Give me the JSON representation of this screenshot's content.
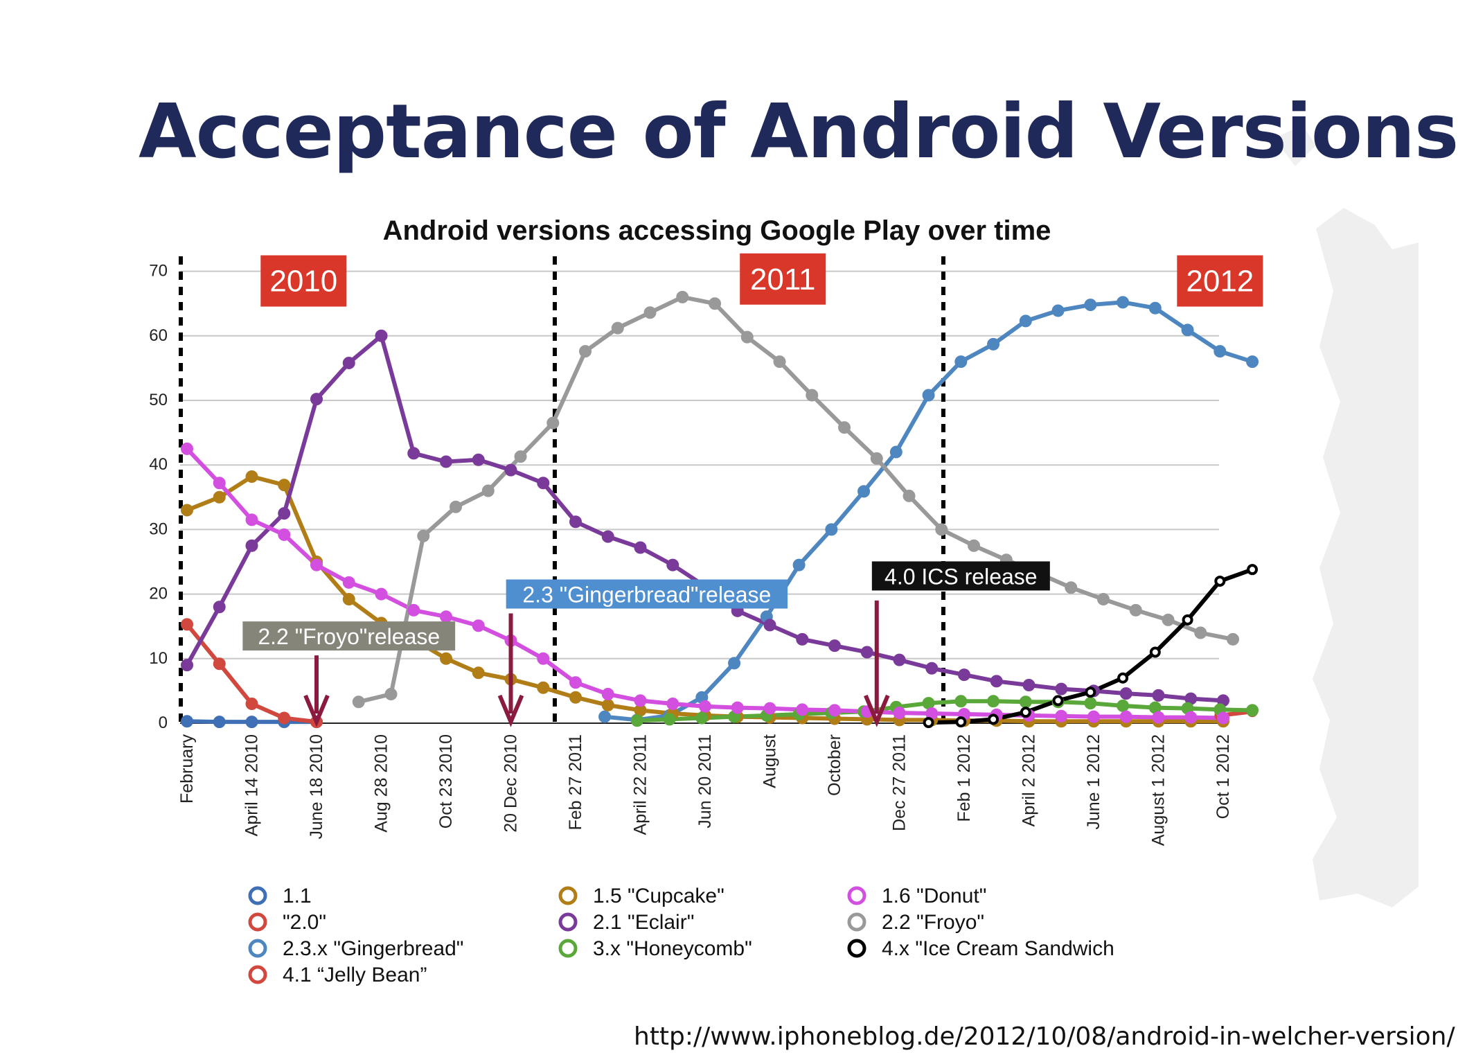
{
  "slide": {
    "title": "Acceptance of Android Versions",
    "source": "http://www.iphoneblog.de/2012/10/08/android-in-welcher-version/"
  },
  "colors": {
    "title": "#1f2a5a",
    "year_box": "#d9372a",
    "froyo_box": "#85857a",
    "gingerbread_box": "#4f8fd0",
    "ics_box": "#111111",
    "arrow": "#8b1a3f"
  },
  "chart_data": {
    "type": "line",
    "title": "Android versions accessing Google Play over time",
    "ylim": [
      0,
      70
    ],
    "yticks": [
      0,
      10,
      20,
      30,
      40,
      50,
      60,
      70
    ],
    "grid": true,
    "legend_position": "bottom",
    "x_tick_labels": [
      {
        "x": 0,
        "label": "February"
      },
      {
        "x": 2,
        "label": "April 14 2010"
      },
      {
        "x": 4,
        "label": "June 18 2010"
      },
      {
        "x": 6,
        "label": "Aug 28 2010"
      },
      {
        "x": 8,
        "label": "Oct 23 2010"
      },
      {
        "x": 10,
        "label": "20 Dec 2010"
      },
      {
        "x": 12,
        "label": "Feb 27 2011"
      },
      {
        "x": 14,
        "label": "April 22 2011"
      },
      {
        "x": 16,
        "label": "Jun 20 2011"
      },
      {
        "x": 18,
        "label": "August"
      },
      {
        "x": 20,
        "label": "October"
      },
      {
        "x": 22,
        "label": "Dec 27 2011"
      },
      {
        "x": 24,
        "label": "Feb 1 2012"
      },
      {
        "x": 26,
        "label": "April 2 2012"
      },
      {
        "x": 28,
        "label": "June 1 2012"
      },
      {
        "x": 30,
        "label": "August 1 2012"
      },
      {
        "x": 32,
        "label": "Oct 1 2012"
      }
    ],
    "year_labels": [
      {
        "label": "2010",
        "x": 3.6,
        "y": 68.5
      },
      {
        "label": "2011",
        "x": 18.4,
        "y": 68.8
      },
      {
        "label": "2012",
        "x": 31.9,
        "y": 68.5
      }
    ],
    "year_dividers": [
      0,
      11.55,
      23.55
    ],
    "annotations": [
      {
        "text": "2.2 \"Froyo\"release",
        "style": "froyo_box",
        "label_x": 5,
        "label_y": 13.4,
        "arrow_x": 4,
        "arrow_top": 10.5
      },
      {
        "text": "2.3 \"Gingerbread\"release",
        "style": "gingerbread_box",
        "label_x": 14.2,
        "label_y": 19.9,
        "arrow_x": 10,
        "arrow_top": 17
      },
      {
        "text": "4.0 ICS release",
        "style": "ics_box",
        "label_x": 23.9,
        "label_y": 22.7,
        "arrow_x": 21.3,
        "arrow_top": 19
      }
    ],
    "series": [
      {
        "name": "1.1",
        "color": "#3f6fb5",
        "open_markers": false,
        "points": [
          [
            0,
            0.3
          ],
          [
            1,
            0.2
          ],
          [
            2,
            0.2
          ],
          [
            3,
            0.2
          ],
          [
            4,
            0.2
          ]
        ]
      },
      {
        "name": "\"2.0\"",
        "color": "#d0483e",
        "open_markers": false,
        "points": [
          [
            0,
            15.3
          ],
          [
            1,
            9.2
          ],
          [
            2,
            3
          ],
          [
            3,
            0.8
          ],
          [
            4,
            0.2
          ]
        ]
      },
      {
        "name": "2.3.x \"Gingerbread\"",
        "color": "#4e86c0",
        "open_markers": false,
        "points": [
          [
            12.9,
            1
          ],
          [
            13.9,
            0.5
          ],
          [
            14.9,
            1.2
          ],
          [
            15.9,
            4
          ],
          [
            16.9,
            9.3
          ],
          [
            17.9,
            16.5
          ],
          [
            18.9,
            24.5
          ],
          [
            19.9,
            30
          ],
          [
            20.9,
            35.9
          ],
          [
            21.9,
            42
          ],
          [
            22.9,
            50.8
          ],
          [
            23.9,
            56
          ],
          [
            24.9,
            58.7
          ],
          [
            25.9,
            62.3
          ],
          [
            26.9,
            63.9
          ],
          [
            27.9,
            64.8
          ],
          [
            28.9,
            65.2
          ],
          [
            29.9,
            64.3
          ],
          [
            30.9,
            60.9
          ],
          [
            31.9,
            57.6
          ],
          [
            32.9,
            56
          ]
        ]
      },
      {
        "name": "4.1 “Jelly Bean”",
        "color": "#d0483e",
        "open_markers": true,
        "points": [
          [
            31.9,
            1.2
          ],
          [
            32.9,
            1.8
          ]
        ]
      },
      {
        "name": "1.5 \"Cupcake\"",
        "color": "#b07d17",
        "open_markers": false,
        "points": [
          [
            0,
            33
          ],
          [
            1,
            35
          ],
          [
            2,
            38.2
          ],
          [
            3,
            36.9
          ],
          [
            4,
            25
          ],
          [
            5,
            19.2
          ],
          [
            6,
            15.5
          ],
          [
            7,
            13
          ],
          [
            8,
            10
          ],
          [
            9,
            7.8
          ],
          [
            10,
            6.8
          ],
          [
            11,
            5.5
          ],
          [
            12,
            4
          ],
          [
            13,
            2.8
          ],
          [
            14,
            2
          ],
          [
            15,
            1.5
          ],
          [
            16,
            1.2
          ],
          [
            17,
            1
          ],
          [
            18,
            0.9
          ],
          [
            19,
            0.8
          ],
          [
            20,
            0.7
          ],
          [
            21,
            0.6
          ],
          [
            22,
            0.5
          ],
          [
            23,
            0.5
          ],
          [
            24,
            0.4
          ],
          [
            25,
            0.4
          ],
          [
            26,
            0.3
          ],
          [
            27,
            0.3
          ],
          [
            28,
            0.3
          ],
          [
            29,
            0.3
          ],
          [
            30,
            0.3
          ],
          [
            31,
            0.3
          ],
          [
            32,
            0.3
          ]
        ]
      },
      {
        "name": "2.1 \"Eclair\"",
        "color": "#7a3a9a",
        "open_markers": false,
        "points": [
          [
            0,
            9
          ],
          [
            1,
            18
          ],
          [
            2,
            27.5
          ],
          [
            3,
            32.5
          ],
          [
            4,
            50.2
          ],
          [
            5,
            55.8
          ],
          [
            6,
            60
          ],
          [
            7,
            41.8
          ],
          [
            8,
            40.5
          ],
          [
            9,
            40.8
          ],
          [
            10,
            39.2
          ],
          [
            11,
            37.2
          ],
          [
            12,
            31.2
          ],
          [
            13,
            28.9
          ],
          [
            14,
            27.2
          ],
          [
            15,
            24.5
          ],
          [
            16,
            21.2
          ],
          [
            17,
            17.4
          ],
          [
            18,
            15.2
          ],
          [
            19,
            13
          ],
          [
            20,
            12
          ],
          [
            21,
            11
          ],
          [
            22,
            9.8
          ],
          [
            23,
            8.5
          ],
          [
            24,
            7.5
          ],
          [
            25,
            6.5
          ],
          [
            26,
            5.9
          ],
          [
            27,
            5.3
          ],
          [
            28,
            5
          ],
          [
            29,
            4.6
          ],
          [
            30,
            4.3
          ],
          [
            31,
            3.8
          ],
          [
            32,
            3.5
          ]
        ]
      },
      {
        "name": "3.x \"Honeycomb\"",
        "color": "#5aa83a",
        "open_markers": false,
        "points": [
          [
            13.9,
            0.4
          ],
          [
            14.9,
            0.6
          ],
          [
            15.9,
            0.8
          ],
          [
            16.9,
            1
          ],
          [
            17.9,
            1.2
          ],
          [
            18.9,
            1.4
          ],
          [
            19.9,
            1.6
          ],
          [
            20.9,
            1.8
          ],
          [
            21.9,
            2.5
          ],
          [
            22.9,
            3.1
          ],
          [
            23.9,
            3.4
          ],
          [
            24.9,
            3.4
          ],
          [
            25.9,
            3.3
          ],
          [
            26.9,
            3.3
          ],
          [
            27.9,
            3.1
          ],
          [
            28.9,
            2.7
          ],
          [
            29.9,
            2.4
          ],
          [
            30.9,
            2.3
          ],
          [
            31.9,
            2.1
          ],
          [
            32.9,
            2
          ]
        ]
      },
      {
        "name": "1.6 \"Donut\"",
        "color": "#d34fe0",
        "open_markers": false,
        "points": [
          [
            0,
            42.5
          ],
          [
            1,
            37.2
          ],
          [
            2,
            31.5
          ],
          [
            3,
            29.2
          ],
          [
            4,
            24.5
          ],
          [
            5,
            21.8
          ],
          [
            6,
            20
          ],
          [
            7,
            17.5
          ],
          [
            8,
            16.5
          ],
          [
            9,
            15.1
          ],
          [
            10,
            12.8
          ],
          [
            11,
            10
          ],
          [
            12,
            6.3
          ],
          [
            13,
            4.5
          ],
          [
            14,
            3.5
          ],
          [
            15,
            3
          ],
          [
            16,
            2.6
          ],
          [
            17,
            2.4
          ],
          [
            18,
            2.3
          ],
          [
            19,
            2.1
          ],
          [
            20,
            2
          ],
          [
            21,
            1.8
          ],
          [
            22,
            1.6
          ],
          [
            23,
            1.5
          ],
          [
            24,
            1.4
          ],
          [
            25,
            1.3
          ],
          [
            26,
            1.2
          ],
          [
            27,
            1.1
          ],
          [
            28,
            1
          ],
          [
            29,
            1
          ],
          [
            30,
            0.9
          ],
          [
            31,
            0.9
          ],
          [
            32,
            0.8
          ]
        ]
      },
      {
        "name": "2.2 \"Froyo\"",
        "color": "#999999",
        "open_markers": false,
        "points": [
          [
            5.3,
            3.3
          ],
          [
            6.3,
            4.5
          ],
          [
            7.3,
            29
          ],
          [
            8.3,
            33.5
          ],
          [
            9.3,
            36
          ],
          [
            10.3,
            41.3
          ],
          [
            11.3,
            46.5
          ],
          [
            12.3,
            57.6
          ],
          [
            13.3,
            61.2
          ],
          [
            14.3,
            63.6
          ],
          [
            15.3,
            66
          ],
          [
            16.3,
            65
          ],
          [
            17.3,
            59.8
          ],
          [
            18.3,
            56
          ],
          [
            19.3,
            50.8
          ],
          [
            20.3,
            45.8
          ],
          [
            21.3,
            41
          ],
          [
            22.3,
            35.2
          ],
          [
            23.3,
            30
          ],
          [
            24.3,
            27.5
          ],
          [
            25.3,
            25.3
          ],
          [
            26.3,
            23.2
          ],
          [
            27.3,
            21
          ],
          [
            28.3,
            19.2
          ],
          [
            29.3,
            17.5
          ],
          [
            30.3,
            16
          ],
          [
            31.3,
            14
          ],
          [
            32.3,
            13
          ]
        ]
      },
      {
        "name": "4.x \"Ice Cream Sandwich",
        "color": "#000000",
        "open_markers": true,
        "points": [
          [
            22.9,
            0.1
          ],
          [
            23.9,
            0.2
          ],
          [
            24.9,
            0.6
          ],
          [
            25.9,
            1.7
          ],
          [
            26.9,
            3.5
          ],
          [
            27.9,
            4.8
          ],
          [
            28.9,
            7
          ],
          [
            29.9,
            11
          ],
          [
            30.9,
            16
          ],
          [
            31.9,
            22
          ],
          [
            32.9,
            23.8
          ]
        ]
      }
    ]
  }
}
